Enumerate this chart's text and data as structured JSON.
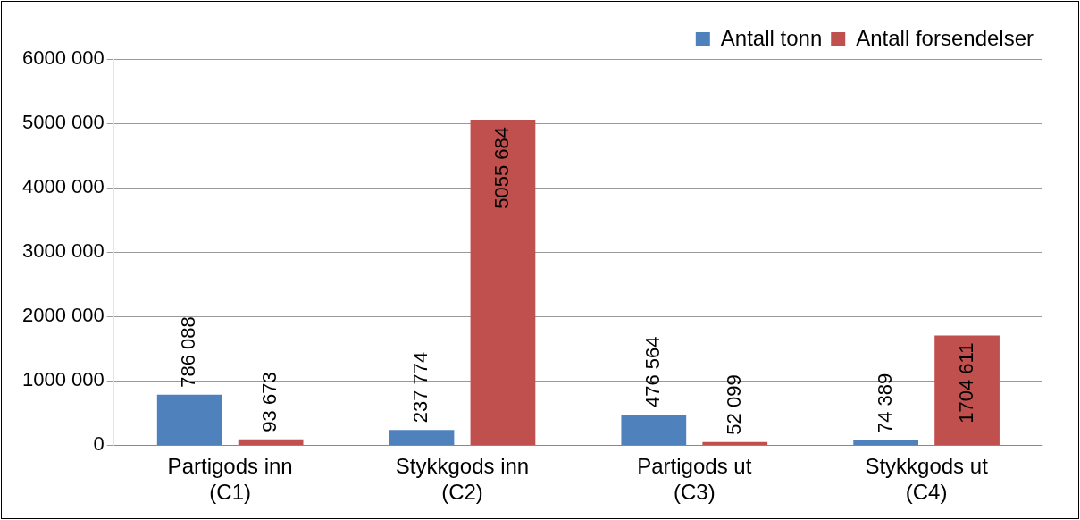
{
  "chart_data": {
    "type": "bar",
    "categories": [
      "Partigods inn (C1)",
      "Stykkgods inn (C2)",
      "Partigods ut (C3)",
      "Stykkgods ut (C4)"
    ],
    "series": [
      {
        "name": "Antall tonn",
        "color": "#4f81bd",
        "values": [
          786088,
          237774,
          476564,
          74389
        ],
        "value_labels": [
          "786 088",
          "237 774",
          "476 564",
          "74 389"
        ]
      },
      {
        "name": "Antall forsendelser",
        "color": "#c0504d",
        "values": [
          93673,
          5055684,
          52099,
          1704611
        ],
        "value_labels": [
          "93 673",
          "5055 684",
          "52 099",
          "1704 611"
        ]
      }
    ],
    "ylim": [
      0,
      6000000
    ],
    "yticks": [
      {
        "value": 0,
        "label": "0"
      },
      {
        "value": 1000000,
        "label": "1000 000"
      },
      {
        "value": 2000000,
        "label": "2000 000"
      },
      {
        "value": 3000000,
        "label": "3000 000"
      },
      {
        "value": 4000000,
        "label": "4000 000"
      },
      {
        "value": 5000000,
        "label": "5000 000"
      },
      {
        "value": 6000000,
        "label": "6000 000"
      }
    ],
    "grid": "y",
    "legend": "top right"
  }
}
